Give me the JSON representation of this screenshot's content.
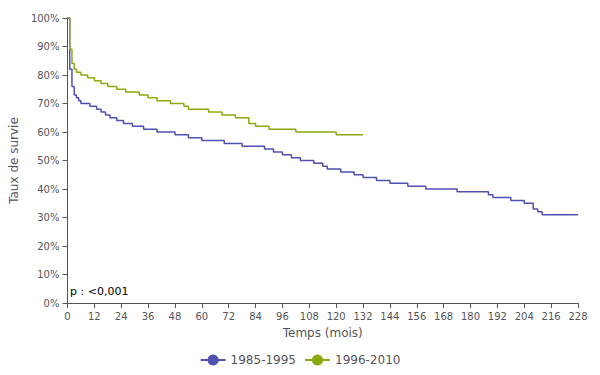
{
  "chart_data": {
    "type": "step",
    "title": "",
    "xlabel": "Temps (mois)",
    "ylabel": "Taux de survie",
    "annotation": "p : <0,001",
    "xlim": [
      0,
      228
    ],
    "ylim": [
      0,
      1.0
    ],
    "xticks": [
      0,
      12,
      24,
      36,
      48,
      60,
      72,
      84,
      96,
      108,
      120,
      132,
      144,
      156,
      168,
      180,
      192,
      204,
      216,
      228
    ],
    "yticks": [
      {
        "value": 0.0,
        "label": "0%"
      },
      {
        "value": 0.1,
        "label": "10%"
      },
      {
        "value": 0.2,
        "label": "20%"
      },
      {
        "value": 0.3,
        "label": "30%"
      },
      {
        "value": 0.4,
        "label": "40%"
      },
      {
        "value": 0.5,
        "label": "50%"
      },
      {
        "value": 0.6,
        "label": "60%"
      },
      {
        "value": 0.7,
        "label": "70%"
      },
      {
        "value": 0.8,
        "label": "80%"
      },
      {
        "value": 0.9,
        "label": "90%"
      },
      {
        "value": 1.0,
        "label": "100%"
      }
    ],
    "grid": false,
    "legend": "bottom",
    "series": [
      {
        "name": "1985-1995",
        "color": "#5050b0",
        "x": [
          0,
          1,
          2,
          3,
          4,
          5,
          6,
          7,
          8,
          9,
          10,
          11,
          12,
          13,
          14,
          15,
          16,
          17,
          18,
          19,
          20,
          21,
          22,
          23,
          24,
          25,
          26,
          27,
          28,
          29,
          30,
          31,
          32,
          33,
          34,
          35,
          36,
          38,
          40,
          42,
          44,
          46,
          48,
          50,
          52,
          54,
          56,
          58,
          60,
          62,
          64,
          66,
          68,
          70,
          72,
          74,
          76,
          78,
          80,
          82,
          84,
          86,
          88,
          90,
          92,
          94,
          96,
          98,
          100,
          102,
          104,
          106,
          108,
          110,
          112,
          114,
          116,
          118,
          120,
          122,
          124,
          126,
          128,
          130,
          132,
          134,
          136,
          138,
          140,
          142,
          144,
          146,
          148,
          150,
          152,
          154,
          156,
          158,
          160,
          162,
          164,
          166,
          168,
          170,
          172,
          174,
          176,
          178,
          180,
          182,
          184,
          186,
          188,
          190,
          192,
          194,
          196,
          198,
          200,
          202,
          204,
          206,
          208,
          210,
          212,
          214,
          216,
          218,
          220,
          222,
          224,
          226,
          228
        ],
        "values": [
          1.0,
          0.82,
          0.76,
          0.73,
          0.72,
          0.71,
          0.7,
          0.7,
          0.7,
          0.7,
          0.69,
          0.69,
          0.69,
          0.68,
          0.68,
          0.67,
          0.67,
          0.66,
          0.66,
          0.65,
          0.65,
          0.65,
          0.64,
          0.64,
          0.64,
          0.63,
          0.63,
          0.63,
          0.63,
          0.62,
          0.62,
          0.62,
          0.62,
          0.62,
          0.61,
          0.61,
          0.61,
          0.61,
          0.6,
          0.6,
          0.6,
          0.6,
          0.59,
          0.59,
          0.59,
          0.58,
          0.58,
          0.58,
          0.57,
          0.57,
          0.57,
          0.57,
          0.57,
          0.56,
          0.56,
          0.56,
          0.56,
          0.55,
          0.55,
          0.55,
          0.55,
          0.55,
          0.54,
          0.54,
          0.53,
          0.53,
          0.52,
          0.52,
          0.51,
          0.51,
          0.5,
          0.5,
          0.5,
          0.49,
          0.49,
          0.48,
          0.47,
          0.47,
          0.47,
          0.46,
          0.46,
          0.46,
          0.45,
          0.45,
          0.44,
          0.44,
          0.44,
          0.43,
          0.43,
          0.43,
          0.42,
          0.42,
          0.42,
          0.42,
          0.41,
          0.41,
          0.41,
          0.41,
          0.4,
          0.4,
          0.4,
          0.4,
          0.4,
          0.4,
          0.4,
          0.39,
          0.39,
          0.39,
          0.39,
          0.39,
          0.39,
          0.39,
          0.38,
          0.37,
          0.37,
          0.37,
          0.37,
          0.36,
          0.36,
          0.36,
          0.35,
          0.35,
          0.33,
          0.32,
          0.31,
          0.31,
          0.31,
          0.31,
          0.31,
          0.31,
          0.31,
          0.31,
          0.31
        ]
      },
      {
        "name": "1996-2010",
        "color": "#8aaa10",
        "x": [
          0,
          1,
          2,
          3,
          4,
          5,
          6,
          7,
          8,
          9,
          10,
          11,
          12,
          13,
          14,
          15,
          16,
          17,
          18,
          19,
          20,
          21,
          22,
          23,
          24,
          26,
          28,
          30,
          32,
          34,
          36,
          38,
          40,
          42,
          44,
          46,
          48,
          50,
          52,
          54,
          56,
          58,
          60,
          63,
          66,
          69,
          72,
          75,
          78,
          81,
          84,
          87,
          90,
          93,
          96,
          99,
          102,
          105,
          108,
          111,
          114,
          117,
          120,
          123,
          126,
          129,
          132
        ],
        "values": [
          1.0,
          0.89,
          0.84,
          0.82,
          0.81,
          0.81,
          0.8,
          0.8,
          0.8,
          0.79,
          0.79,
          0.79,
          0.78,
          0.78,
          0.78,
          0.77,
          0.77,
          0.77,
          0.76,
          0.76,
          0.76,
          0.76,
          0.75,
          0.75,
          0.75,
          0.74,
          0.74,
          0.74,
          0.73,
          0.73,
          0.72,
          0.72,
          0.71,
          0.71,
          0.71,
          0.7,
          0.7,
          0.7,
          0.69,
          0.68,
          0.68,
          0.68,
          0.68,
          0.67,
          0.67,
          0.66,
          0.66,
          0.65,
          0.65,
          0.63,
          0.62,
          0.62,
          0.61,
          0.61,
          0.61,
          0.61,
          0.6,
          0.6,
          0.6,
          0.6,
          0.6,
          0.6,
          0.59,
          0.59,
          0.59,
          0.59,
          0.59
        ]
      }
    ]
  }
}
